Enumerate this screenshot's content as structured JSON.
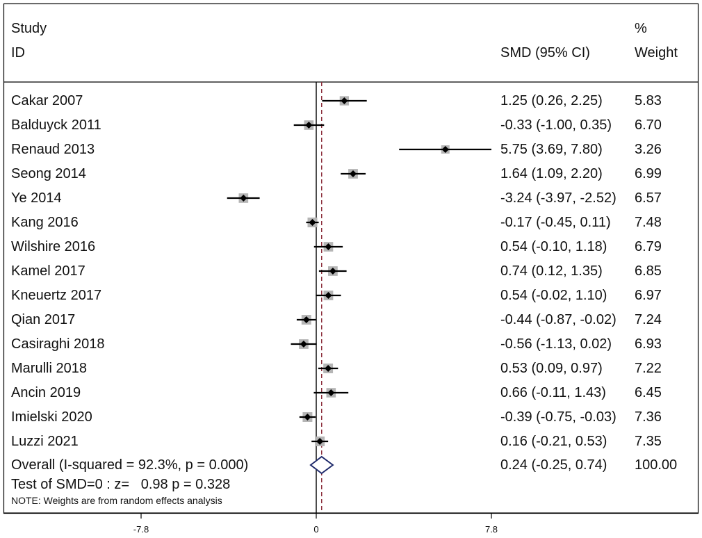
{
  "header": {
    "study_line1": "Study",
    "study_line2": "ID",
    "smd_label": "SMD (95% CI)",
    "weight_line1": "%",
    "weight_line2": "Weight"
  },
  "chart_data": {
    "type": "forest",
    "effect_measure": "SMD",
    "studies": [
      {
        "id": "Cakar 2007",
        "smd": 1.25,
        "lo": 0.26,
        "hi": 2.25,
        "ci_text": "1.25 (0.26, 2.25)",
        "weight": 5.83,
        "weight_text": "5.83"
      },
      {
        "id": "Balduyck 2011",
        "smd": -0.33,
        "lo": -1.0,
        "hi": 0.35,
        "ci_text": "-0.33 (-1.00, 0.35)",
        "weight": 6.7,
        "weight_text": "6.70"
      },
      {
        "id": "Renaud 2013",
        "smd": 5.75,
        "lo": 3.69,
        "hi": 7.8,
        "ci_text": "5.75 (3.69, 7.80)",
        "weight": 3.26,
        "weight_text": "3.26"
      },
      {
        "id": "Seong 2014",
        "smd": 1.64,
        "lo": 1.09,
        "hi": 2.2,
        "ci_text": "1.64 (1.09, 2.20)",
        "weight": 6.99,
        "weight_text": "6.99"
      },
      {
        "id": "Ye 2014",
        "smd": -3.24,
        "lo": -3.97,
        "hi": -2.52,
        "ci_text": "-3.24 (-3.97, -2.52)",
        "weight": 6.57,
        "weight_text": "6.57"
      },
      {
        "id": "Kang 2016",
        "smd": -0.17,
        "lo": -0.45,
        "hi": 0.11,
        "ci_text": "-0.17 (-0.45, 0.11)",
        "weight": 7.48,
        "weight_text": "7.48"
      },
      {
        "id": "Wilshire 2016",
        "smd": 0.54,
        "lo": -0.1,
        "hi": 1.18,
        "ci_text": "0.54 (-0.10, 1.18)",
        "weight": 6.79,
        "weight_text": "6.79"
      },
      {
        "id": "Kamel 2017",
        "smd": 0.74,
        "lo": 0.12,
        "hi": 1.35,
        "ci_text": "0.74 (0.12, 1.35)",
        "weight": 6.85,
        "weight_text": "6.85"
      },
      {
        "id": "Kneuertz 2017",
        "smd": 0.54,
        "lo": -0.02,
        "hi": 1.1,
        "ci_text": "0.54 (-0.02, 1.10)",
        "weight": 6.97,
        "weight_text": "6.97"
      },
      {
        "id": "Qian 2017",
        "smd": -0.44,
        "lo": -0.87,
        "hi": -0.02,
        "ci_text": "-0.44 (-0.87, -0.02)",
        "weight": 7.24,
        "weight_text": "7.24"
      },
      {
        "id": "Casiraghi 2018",
        "smd": -0.56,
        "lo": -1.13,
        "hi": 0.02,
        "ci_text": "-0.56 (-1.13, 0.02)",
        "weight": 6.93,
        "weight_text": "6.93"
      },
      {
        "id": "Marulli 2018",
        "smd": 0.53,
        "lo": 0.09,
        "hi": 0.97,
        "ci_text": "0.53 (0.09, 0.97)",
        "weight": 7.22,
        "weight_text": "7.22"
      },
      {
        "id": "Ancin 2019",
        "smd": 0.66,
        "lo": -0.11,
        "hi": 1.43,
        "ci_text": "0.66 (-0.11, 1.43)",
        "weight": 6.45,
        "weight_text": "6.45"
      },
      {
        "id": "Imielski 2020",
        "smd": -0.39,
        "lo": -0.75,
        "hi": -0.03,
        "ci_text": "-0.39 (-0.75, -0.03)",
        "weight": 7.36,
        "weight_text": "7.36"
      },
      {
        "id": "Luzzi 2021",
        "smd": 0.16,
        "lo": -0.21,
        "hi": 0.53,
        "ci_text": "0.16 (-0.21, 0.53)",
        "weight": 7.35,
        "weight_text": "7.35"
      }
    ],
    "overall": {
      "label": "Overall  (I-squared = 92.3%, p = 0.000)",
      "smd": 0.24,
      "lo": -0.25,
      "hi": 0.74,
      "ci_text": "0.24 (-0.25, 0.74)",
      "weight_text": "100.00"
    },
    "test_text": "Test of SMD=0 : z=   0.98 p = 0.328",
    "note": "NOTE: Weights are from random effects analysis",
    "x_ticks": [
      -7.8,
      0,
      7.8
    ],
    "x_tick_labels": [
      "-7.8",
      "0",
      "7.8"
    ],
    "xlim": [
      -7.8,
      7.8
    ],
    "colors": {
      "box": "#b5b5b5",
      "diamond": "#1f2a6b",
      "overall_line": "#8b2d3a",
      "line": "#000000"
    }
  }
}
